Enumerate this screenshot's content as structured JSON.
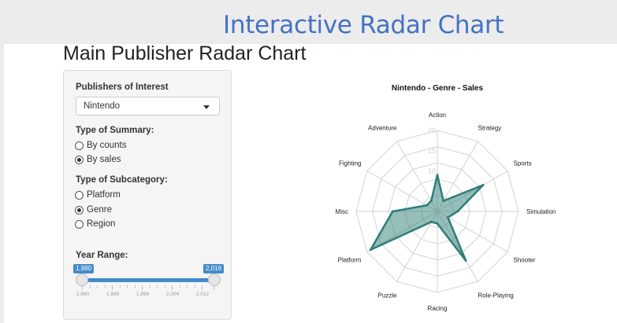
{
  "slide": {
    "title": "Interactive Radar Chart"
  },
  "app": {
    "title": "Main Publisher Radar Chart"
  },
  "controls": {
    "publisher": {
      "label": "Publishers of Interest",
      "value": "Nintendo"
    },
    "summary": {
      "label": "Type of Summary:",
      "options": [
        {
          "label": "By counts",
          "selected": false
        },
        {
          "label": "By sales",
          "selected": true
        }
      ]
    },
    "subcategory": {
      "label": "Type of Subcategory:",
      "options": [
        {
          "label": "Platform",
          "selected": false
        },
        {
          "label": "Genre",
          "selected": true
        },
        {
          "label": "Region",
          "selected": false
        }
      ]
    },
    "year_range": {
      "label": "Year Range:",
      "min_label": "1,980",
      "max_label": "2,016",
      "ticks": [
        "1,980",
        "1,988",
        "1,996",
        "2,004",
        "2,012"
      ]
    }
  },
  "chart_data": {
    "type": "radar",
    "title": "Nintendo  - Genre - Sales",
    "categories": [
      "Action",
      "Strategy",
      "Sports",
      "Simulation",
      "Shooter",
      "Role-Playing",
      "Racing",
      "Puzzle",
      "Platform",
      "Misc",
      "Fighting",
      "Adventure"
    ],
    "rticks": [
      "10",
      "15",
      "20"
    ],
    "rlim": [
      0,
      20
    ],
    "series": [
      {
        "values": [
          9,
          3,
          13,
          5,
          3,
          14,
          3,
          3,
          19,
          11,
          3,
          3
        ]
      }
    ],
    "colors": {
      "line": "#2e7d78",
      "fill": "#2e7d78",
      "grid": "#d2d2d2"
    }
  }
}
